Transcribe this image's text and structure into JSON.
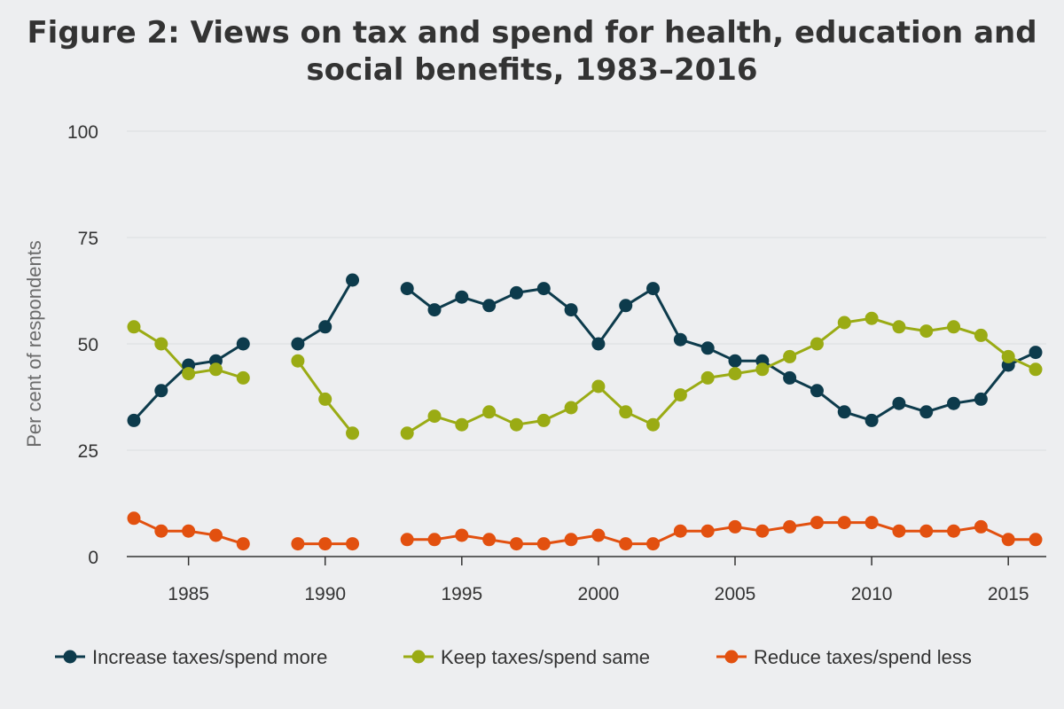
{
  "chart_data": {
    "type": "line",
    "title_lines": [
      "Figure 2: Views on tax and spend for health, education and",
      "social benefits, 1983–2016"
    ],
    "ylabel": "Per cent of respondents",
    "xlabel": "",
    "ylim": [
      0,
      100
    ],
    "xlim": [
      1983,
      2016
    ],
    "yticks": [
      0,
      25,
      50,
      75,
      100
    ],
    "xticks": [
      1985,
      1990,
      1995,
      2000,
      2005,
      2010,
      2015
    ],
    "grid": true,
    "x": [
      1983,
      1984,
      1985,
      1986,
      1987,
      1988,
      1989,
      1990,
      1991,
      1992,
      1993,
      1994,
      1995,
      1996,
      1997,
      1998,
      1999,
      2000,
      2001,
      2002,
      2003,
      2004,
      2005,
      2006,
      2007,
      2008,
      2009,
      2010,
      2011,
      2012,
      2013,
      2014,
      2015,
      2016
    ],
    "series": [
      {
        "name": "Increase taxes/spend more",
        "color": "#0d3b4c",
        "values": [
          32,
          39,
          45,
          46,
          50,
          null,
          50,
          54,
          65,
          null,
          63,
          58,
          61,
          59,
          62,
          63,
          58,
          50,
          59,
          63,
          51,
          49,
          46,
          46,
          42,
          39,
          34,
          32,
          36,
          34,
          36,
          37,
          45,
          48
        ]
      },
      {
        "name": "Keep taxes/spend same",
        "color": "#9aab14",
        "values": [
          54,
          50,
          43,
          44,
          42,
          null,
          46,
          37,
          29,
          null,
          29,
          33,
          31,
          34,
          31,
          32,
          35,
          40,
          34,
          31,
          38,
          42,
          43,
          44,
          47,
          50,
          55,
          56,
          54,
          53,
          54,
          52,
          47,
          44
        ]
      },
      {
        "name": "Reduce taxes/spend less",
        "color": "#e2500f",
        "values": [
          9,
          6,
          6,
          5,
          3,
          null,
          3,
          3,
          3,
          null,
          4,
          4,
          5,
          4,
          3,
          3,
          4,
          5,
          3,
          3,
          6,
          6,
          7,
          6,
          7,
          8,
          8,
          8,
          6,
          6,
          6,
          7,
          4,
          4
        ]
      }
    ],
    "legend_position": "bottom"
  }
}
